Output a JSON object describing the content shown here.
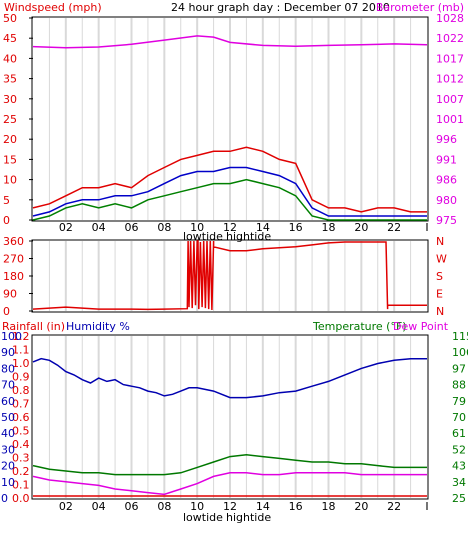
{
  "title": "24 hour graph day : December 07 2010",
  "colors": {
    "background": "#ffffff",
    "plot_bg": "#ffffff",
    "grid": "#d9d9d9",
    "wind_gust": "#e00000",
    "wind_avg": "#0000c8",
    "wind_low": "#008000",
    "barometer": "#e000e0",
    "direction": "#e00000",
    "humidity": "#0000b0",
    "temperature": "#007800",
    "dewpoint": "#e000e0",
    "rainfall": "#e00000"
  },
  "chart_data": [
    {
      "type": "line",
      "name": "wind_barometer",
      "left_label": "Windspeed (mph)",
      "right_label": "Barometer (mb)",
      "left_ticks": [
        "0",
        "5",
        "10",
        "15",
        "20",
        "25",
        "30",
        "35",
        "40",
        "45",
        "50"
      ],
      "right_ticks": [
        "975",
        "980",
        "986",
        "991",
        "996",
        "1001",
        "1007",
        "1012",
        "1017",
        "1022",
        "1028"
      ],
      "x_ticks": [
        "02",
        "04",
        "06",
        "08",
        "10",
        "12",
        "14",
        "16",
        "18",
        "20",
        "22",
        "I"
      ],
      "tide_labels": [
        "lowtide",
        "hightide"
      ],
      "ylim_left": [
        0,
        50
      ],
      "ylim_right": [
        975,
        1028
      ],
      "x_range_hours": [
        0,
        24
      ],
      "series": [
        {
          "key": "gust",
          "x": [
            0,
            1,
            2,
            3,
            4,
            5,
            6,
            7,
            8,
            9,
            10,
            11,
            12,
            13,
            14,
            15,
            16,
            17,
            18,
            19,
            20,
            21,
            22,
            23,
            24
          ],
          "y": [
            3,
            4,
            6,
            8,
            8,
            9,
            8,
            11,
            13,
            15,
            16,
            17,
            17,
            18,
            17,
            15,
            14,
            5,
            3,
            3,
            2,
            3,
            3,
            2,
            2
          ]
        },
        {
          "key": "average",
          "x": [
            0,
            1,
            2,
            3,
            4,
            5,
            6,
            7,
            8,
            9,
            10,
            11,
            12,
            13,
            14,
            15,
            16,
            17,
            18,
            19,
            20,
            21,
            22,
            23,
            24
          ],
          "y": [
            1,
            2,
            4,
            5,
            5,
            6,
            6,
            7,
            9,
            11,
            12,
            12,
            13,
            13,
            12,
            11,
            9,
            3,
            1,
            1,
            1,
            1,
            1,
            1,
            1
          ]
        },
        {
          "key": "low",
          "x": [
            0,
            1,
            2,
            3,
            4,
            5,
            6,
            7,
            8,
            9,
            10,
            11,
            12,
            13,
            14,
            15,
            16,
            17,
            18,
            19,
            20,
            21,
            22,
            23,
            24
          ],
          "y": [
            0,
            1,
            3,
            4,
            3,
            4,
            3,
            5,
            6,
            7,
            8,
            9,
            9,
            10,
            9,
            8,
            6,
            1,
            0,
            0,
            0,
            0,
            0,
            0,
            0
          ]
        },
        {
          "key": "barometer",
          "x": [
            0,
            2,
            4,
            6,
            8,
            10,
            11,
            12,
            14,
            16,
            18,
            20,
            22,
            24
          ],
          "y": [
            1020.5,
            1020.2,
            1020.4,
            1021.1,
            1022.2,
            1023.3,
            1023.0,
            1021.6,
            1020.8,
            1020.6,
            1020.8,
            1021.0,
            1021.2,
            1021.0
          ]
        }
      ]
    },
    {
      "type": "line",
      "name": "wind_direction",
      "left_ticks": [
        "360",
        "270",
        "180",
        "90",
        "0"
      ],
      "right_ticks": [
        "N",
        "W",
        "S",
        "E",
        "N"
      ],
      "ylim_left": [
        0,
        360
      ],
      "x_range_hours": [
        0,
        24
      ],
      "series": [
        {
          "key": "direction",
          "x": [
            0,
            1,
            2,
            3,
            4,
            5,
            6,
            7,
            8,
            9.4,
            9.45,
            9.5,
            9.6,
            9.7,
            9.8,
            9.9,
            10,
            10.05,
            10.1,
            10.2,
            10.3,
            10.4,
            10.5,
            10.6,
            10.7,
            10.8,
            10.9,
            11,
            11,
            12,
            13,
            14,
            15,
            16,
            17,
            18,
            19,
            20,
            21,
            21.5,
            21.6,
            21.6,
            23,
            24
          ],
          "y": [
            10,
            15,
            20,
            15,
            10,
            10,
            10,
            8,
            10,
            12,
            360,
            20,
            360,
            15,
            360,
            30,
            360,
            360,
            10,
            355,
            20,
            360,
            15,
            360,
            10,
            360,
            5,
            360,
            330,
            310,
            310,
            320,
            325,
            330,
            340,
            350,
            355,
            355,
            355,
            355,
            10,
            30,
            30,
            30
          ]
        }
      ]
    },
    {
      "type": "line",
      "name": "temp_humidity",
      "left_label_rain": "Rainfall (in)",
      "left_label_humidity": "Humidity %",
      "right_label_temp": "Temperature (°F)",
      "right_label_dew": "Dew Point",
      "left_ticks_rain": [
        "0.0",
        "0.1",
        "0.2",
        "0.3",
        "0.4",
        "0.5",
        "0.6",
        "0.7",
        "0.8",
        "0.9",
        "1.0",
        "1.1",
        "1.2"
      ],
      "left_ticks_humidity": [
        "0",
        "10",
        "20",
        "30",
        "40",
        "50",
        "60",
        "70",
        "80",
        "90",
        "100"
      ],
      "right_ticks": [
        "25",
        "34",
        "43",
        "52",
        "61",
        "70",
        "79",
        "88",
        "97",
        "106",
        "115"
      ],
      "ylim_humidity": [
        0,
        100
      ],
      "ylim_temp": [
        25,
        115
      ],
      "x_range_hours": [
        0,
        24
      ],
      "series": [
        {
          "key": "humidity",
          "x": [
            0,
            0.5,
            1,
            1.5,
            2,
            2.5,
            3,
            3.5,
            4,
            4.5,
            5,
            5.5,
            6,
            6.5,
            7,
            7.5,
            8,
            8.5,
            9,
            9.5,
            10,
            11,
            12,
            13,
            14,
            15,
            16,
            17,
            18,
            19,
            20,
            21,
            22,
            23,
            24
          ],
          "y": [
            84,
            86,
            85,
            82,
            78,
            76,
            73,
            71,
            74,
            72,
            73,
            70,
            69,
            68,
            66,
            65,
            63,
            64,
            66,
            68,
            68,
            66,
            62,
            62,
            63,
            65,
            66,
            69,
            72,
            76,
            80,
            83,
            85,
            86,
            86
          ]
        },
        {
          "key": "temperature",
          "x": [
            0,
            1,
            2,
            3,
            4,
            5,
            6,
            7,
            8,
            9,
            10,
            11,
            12,
            13,
            14,
            15,
            16,
            17,
            18,
            19,
            20,
            21,
            22,
            23,
            24
          ],
          "y": [
            43,
            41,
            40,
            39,
            39,
            38,
            38,
            38,
            38,
            39,
            42,
            45,
            48,
            49,
            48,
            47,
            46,
            45,
            45,
            44,
            44,
            43,
            42,
            42,
            42
          ]
        },
        {
          "key": "dewpoint",
          "x": [
            0,
            1,
            2,
            3,
            4,
            5,
            6,
            7,
            8,
            9,
            10,
            11,
            12,
            13,
            14,
            15,
            16,
            17,
            18,
            19,
            20,
            21,
            22,
            23,
            24
          ],
          "y": [
            37,
            35,
            34,
            33,
            32,
            30,
            29,
            28,
            27,
            30,
            33,
            37,
            39,
            39,
            38,
            38,
            39,
            39,
            39,
            39,
            38,
            38,
            38,
            38,
            38
          ]
        },
        {
          "key": "rainfall",
          "x": [
            0,
            24
          ],
          "y": [
            0,
            0
          ]
        }
      ]
    }
  ]
}
